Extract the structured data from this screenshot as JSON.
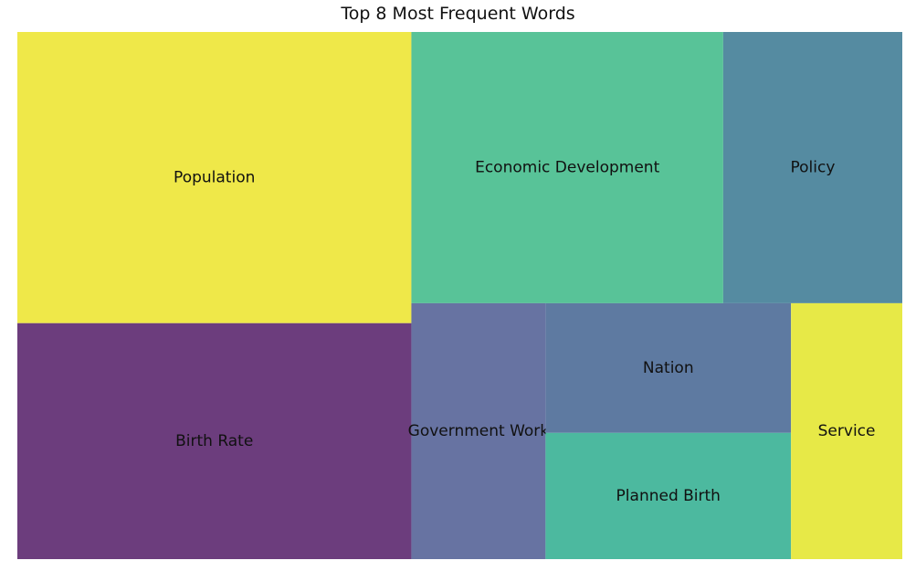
{
  "chart_data": {
    "type": "treemap",
    "title": "Top 8 Most Frequent Words",
    "items": [
      {
        "label": "Population",
        "value": 137,
        "color": "#efe849"
      },
      {
        "label": "Birth Rate",
        "value": 111,
        "color": "#6c3d7d"
      },
      {
        "label": "Economic Development",
        "value": 101,
        "color": "#58c398"
      },
      {
        "label": "Policy",
        "value": 58,
        "color": "#558ba1"
      },
      {
        "label": "Government Work",
        "value": 41,
        "color": "#6773a2"
      },
      {
        "label": "Nation",
        "value": 38,
        "color": "#5e7aa1"
      },
      {
        "label": "Planned Birth",
        "value": 37,
        "color": "#4cb99f"
      },
      {
        "label": "Service",
        "value": 34,
        "color": "#e7e947"
      }
    ]
  }
}
